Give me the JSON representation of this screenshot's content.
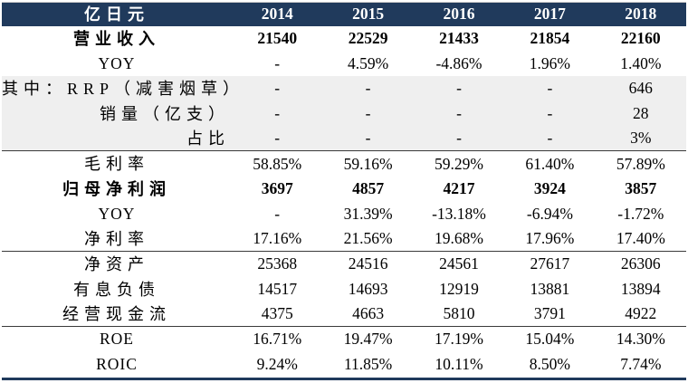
{
  "table": {
    "unit_label": "亿日元",
    "years": [
      "2014",
      "2015",
      "2016",
      "2017",
      "2018"
    ],
    "rows": [
      {
        "label": "营业收入",
        "values": [
          "21540",
          "22529",
          "21433",
          "21854",
          "22160"
        ],
        "bold": true
      },
      {
        "label": "YOY",
        "values": [
          "-",
          "4.59%",
          "-4.86%",
          "1.96%",
          "1.40%"
        ]
      },
      {
        "label": "其中：RRP（减害烟草）",
        "values": [
          "-",
          "-",
          "-",
          "-",
          "646"
        ],
        "band": true,
        "align": "right"
      },
      {
        "label": "销量（亿支）",
        "values": [
          "-",
          "-",
          "-",
          "-",
          "28"
        ],
        "band": true,
        "align": "right"
      },
      {
        "label": "占比",
        "values": [
          "-",
          "-",
          "-",
          "-",
          "3%"
        ],
        "band": true,
        "align": "right",
        "sep_after": true
      },
      {
        "label": "毛利率",
        "values": [
          "58.85%",
          "59.16%",
          "59.29%",
          "61.40%",
          "57.89%"
        ]
      },
      {
        "label": "归母净利润",
        "values": [
          "3697",
          "4857",
          "4217",
          "3924",
          "3857"
        ],
        "bold": true
      },
      {
        "label": "YOY",
        "values": [
          "-",
          "31.39%",
          "-13.18%",
          "-6.94%",
          "-1.72%"
        ]
      },
      {
        "label": "净利率",
        "values": [
          "17.16%",
          "21.56%",
          "19.68%",
          "17.96%",
          "17.40%"
        ],
        "sep_after": true
      },
      {
        "label": "净资产",
        "values": [
          "25368",
          "24516",
          "24561",
          "27617",
          "26306"
        ]
      },
      {
        "label": "有息负债",
        "values": [
          "14517",
          "14693",
          "12919",
          "13881",
          "13894"
        ]
      },
      {
        "label": "经营现金流",
        "values": [
          "4375",
          "4663",
          "5810",
          "3791",
          "4922"
        ],
        "sep_after": true
      },
      {
        "label": "ROE",
        "values": [
          "16.71%",
          "19.47%",
          "17.19%",
          "15.04%",
          "14.30%"
        ]
      },
      {
        "label": "ROIC",
        "values": [
          "9.24%",
          "11.85%",
          "10.11%",
          "8.50%",
          "7.74%"
        ]
      }
    ],
    "colors": {
      "header_bg": "#203A5C",
      "band_bg": "#EFEFEF",
      "separator": "#3A3A3A",
      "bottom_bar": "#203A5C",
      "header_text": "#FFFFFF",
      "body_text": "#000000"
    }
  }
}
